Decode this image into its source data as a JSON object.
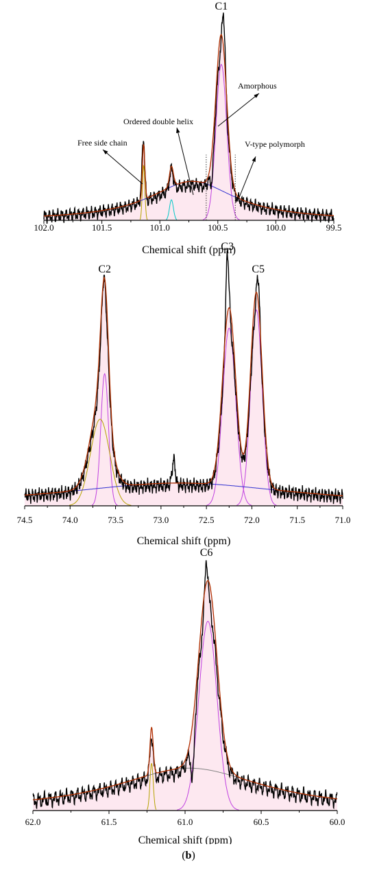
{
  "chart_data": [
    {
      "type": "line",
      "xlabel": "Chemical shift (ppm)",
      "xlim": [
        102.0,
        99.5
      ],
      "x_reversed": true,
      "x_ticks": [
        "102.0",
        "101.5",
        "101.0",
        "100.5",
        "100.0",
        "99.5"
      ],
      "peak_labels": [
        {
          "text": "C1",
          "x": 100.47
        }
      ],
      "annotations": [
        {
          "text": "Amorphous",
          "target_x": 100.47
        },
        {
          "text": "Ordered double helix",
          "target_x": 100.65
        },
        {
          "text": "Free side chain",
          "target_x": 101.12
        },
        {
          "text": "V-type polymorph",
          "target_x": 100.33
        }
      ],
      "fit_components": [
        {
          "shape": "gaussian",
          "center": 101.14,
          "fwhm": 0.025,
          "height": 0.27,
          "color": "#b5a300"
        },
        {
          "shape": "gaussian",
          "center": 100.9,
          "fwhm": 0.04,
          "height": 0.1,
          "color": "#00c8c8"
        },
        {
          "shape": "gaussian",
          "center": 100.47,
          "fwhm": 0.11,
          "height": 0.76,
          "color": "#c040e0"
        },
        {
          "shape": "lorentzian",
          "center": 100.72,
          "fwhm": 0.9,
          "height": 0.19,
          "color": "#3030d0"
        }
      ],
      "observed_peaks": [
        {
          "center": 100.45,
          "height": 1.0
        },
        {
          "center": 101.15,
          "height": 0.33
        },
        {
          "center": 100.9,
          "height": 0.25
        },
        {
          "center": 100.55,
          "height": 0.2
        }
      ]
    },
    {
      "type": "line",
      "xlabel": "Chemical shift (ppm)",
      "xlim": [
        74.5,
        71.0
      ],
      "x_reversed": true,
      "x_ticks": [
        "74.5",
        "74.0",
        "73.5",
        "73.0",
        "72.5",
        "72.0",
        "71.5",
        "71.0"
      ],
      "peak_labels": [
        {
          "text": "C2",
          "x": 73.62
        },
        {
          "text": "C3",
          "x": 72.27
        },
        {
          "text": "C5",
          "x": 71.93
        }
      ],
      "fit_components": [
        {
          "shape": "gaussian",
          "center": 73.62,
          "fwhm": 0.1,
          "height": 0.58,
          "color": "#c040e0"
        },
        {
          "shape": "gaussian",
          "center": 73.67,
          "fwhm": 0.25,
          "height": 0.38,
          "color": "#b5a300"
        },
        {
          "shape": "gaussian",
          "center": 72.25,
          "fwhm": 0.17,
          "height": 0.78,
          "color": "#c040e0"
        },
        {
          "shape": "gaussian",
          "center": 71.95,
          "fwhm": 0.15,
          "height": 0.86,
          "color": "#c040e0"
        },
        {
          "shape": "lorentzian",
          "center": 72.8,
          "fwhm": 3.2,
          "height": 0.1,
          "color": "#3030d0"
        }
      ],
      "observed_peaks": [
        {
          "center": 73.63,
          "height": 1.0
        },
        {
          "center": 72.27,
          "height": 1.1
        },
        {
          "center": 71.93,
          "height": 1.0
        },
        {
          "center": 72.86,
          "height": 0.2
        }
      ]
    },
    {
      "type": "line",
      "xlabel": "Chemical shift (ppm)",
      "xlim": [
        62.0,
        60.0
      ],
      "x_reversed": true,
      "x_ticks": [
        "62.0",
        "61.5",
        "61.0",
        "60.5",
        "60.0"
      ],
      "peak_labels": [
        {
          "text": "C6",
          "x": 60.86
        }
      ],
      "fit_components": [
        {
          "shape": "gaussian",
          "center": 61.22,
          "fwhm": 0.025,
          "height": 0.19,
          "color": "#b5a300"
        },
        {
          "shape": "gaussian",
          "center": 60.85,
          "fwhm": 0.14,
          "height": 0.76,
          "color": "#c040e0"
        },
        {
          "shape": "lorentzian",
          "center": 60.97,
          "fwhm": 1.2,
          "height": 0.17,
          "color": "#808080"
        }
      ],
      "observed_peaks": [
        {
          "center": 60.86,
          "height": 1.0
        },
        {
          "center": 61.22,
          "height": 0.3
        },
        {
          "center": 60.95,
          "height": 0.13
        }
      ]
    }
  ],
  "caption": {
    "open": "(",
    "letter": "b",
    "close": ")"
  }
}
